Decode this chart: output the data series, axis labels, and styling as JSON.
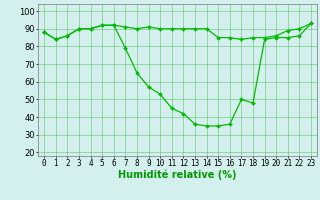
{
  "line1_x": [
    0,
    1,
    2,
    3,
    4,
    5,
    6,
    7,
    8,
    9,
    10,
    11,
    12,
    13,
    14,
    15,
    16,
    17,
    18,
    19,
    20,
    21,
    22,
    23
  ],
  "line1_y": [
    88,
    84,
    86,
    90,
    90,
    92,
    92,
    91,
    90,
    91,
    90,
    90,
    90,
    90,
    90,
    85,
    85,
    84,
    85,
    85,
    86,
    89,
    90,
    93
  ],
  "line2_x": [
    0,
    1,
    2,
    3,
    4,
    5,
    6,
    7,
    8,
    9,
    10,
    11,
    12,
    13,
    14,
    15,
    16,
    17,
    18,
    19,
    20,
    21,
    22,
    23
  ],
  "line2_y": [
    88,
    84,
    86,
    90,
    90,
    92,
    92,
    79,
    65,
    57,
    53,
    45,
    42,
    36,
    35,
    35,
    36,
    50,
    48,
    84,
    85,
    85,
    86,
    93
  ],
  "line_color": "#00bb00",
  "marker": "D",
  "marker_size": 2.0,
  "bg_color": "#d4f0ee",
  "grid_color": "#44bb44",
  "xlabel": "Humidité relative (%)",
  "xlabel_color": "#009900",
  "xlabel_fontsize": 7,
  "ylabel_ticks": [
    20,
    30,
    40,
    50,
    60,
    70,
    80,
    90,
    100
  ],
  "xlim": [
    -0.5,
    23.5
  ],
  "ylim": [
    18,
    104
  ],
  "xtick_labels": [
    "0",
    "1",
    "2",
    "3",
    "4",
    "5",
    "6",
    "7",
    "8",
    "9",
    "10",
    "11",
    "12",
    "13",
    "14",
    "15",
    "16",
    "17",
    "18",
    "19",
    "20",
    "21",
    "22",
    "23"
  ],
  "tick_fontsize": 5.5,
  "ytick_fontsize": 6,
  "tick_color": "#000000",
  "grid_alpha": 0.8,
  "line_width": 0.9
}
